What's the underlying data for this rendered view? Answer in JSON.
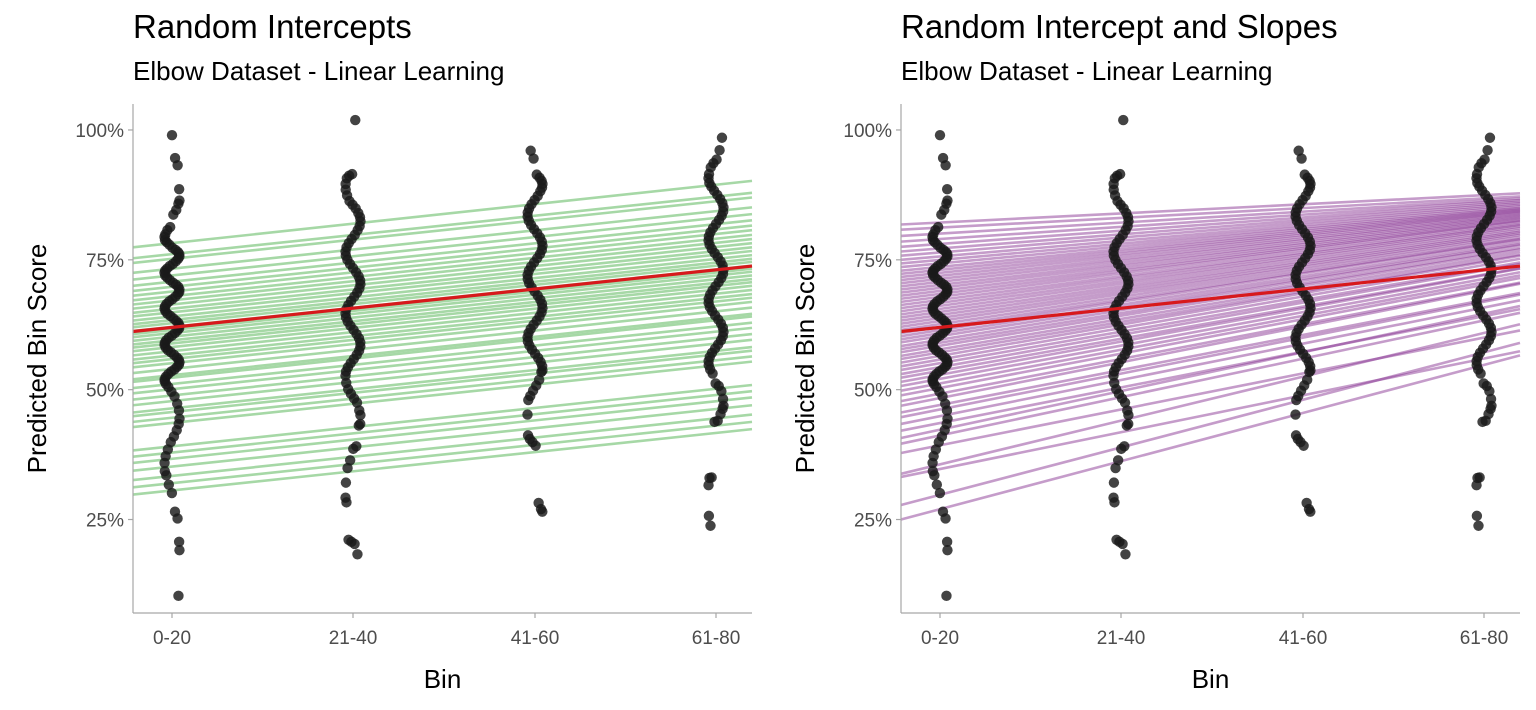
{
  "chart_data": [
    {
      "type": "scatter",
      "title": "Random Intercepts",
      "subtitle": "Elbow Dataset - Linear Learning",
      "xlabel": "Bin",
      "ylabel": "Predicted Bin Score",
      "categories": [
        "0-20",
        "21-40",
        "41-60",
        "61-80"
      ],
      "y_ticks": [
        "25%",
        "50%",
        "75%",
        "100%"
      ],
      "y_tick_values": [
        25,
        50,
        75,
        100
      ],
      "ylim": [
        7,
        105
      ],
      "line_color": "#5cb85c",
      "fit_color": "#d7191c",
      "point_color": "#1a1a1a",
      "fit_line": {
        "start": 61.2,
        "end": 73.8
      },
      "group_lines": {
        "start": [
          29.8,
          31.2,
          32.6,
          34.4,
          35.9,
          37.1,
          38.3,
          42.8,
          43.8,
          44.9,
          45.6,
          47.0,
          48.1,
          49.3,
          50.3,
          51.5,
          52.0,
          53.2,
          54.3,
          55.1,
          55.8,
          56.6,
          57.4,
          58.1,
          58.7,
          59.4,
          60.1,
          60.7,
          61.3,
          62.0,
          62.6,
          63.3,
          64.1,
          64.8,
          65.6,
          66.4,
          67.2,
          68.1,
          69.0,
          70.0,
          71.2,
          72.5,
          74.4,
          75.3,
          77.4
        ],
        "end": [
          42.4,
          43.8,
          45.2,
          47.0,
          48.5,
          49.7,
          50.9,
          55.4,
          56.4,
          57.5,
          58.2,
          59.6,
          60.7,
          61.9,
          62.9,
          64.1,
          64.6,
          65.8,
          66.9,
          67.7,
          68.4,
          69.2,
          70.0,
          70.7,
          71.3,
          72.0,
          72.7,
          73.3,
          73.9,
          74.6,
          75.2,
          75.9,
          76.7,
          77.4,
          78.2,
          79.0,
          79.8,
          80.7,
          81.6,
          82.6,
          83.8,
          85.1,
          87.0,
          87.9,
          90.2
        ]
      },
      "points": [
        [
          99.0,
          94.6,
          93.2,
          88.6,
          86.4,
          85.8,
          84.6,
          83.7,
          81.3,
          80.7,
          79.9,
          79.4,
          78.8,
          78.4,
          77.9,
          77.3,
          76.9,
          76.5,
          76.1,
          75.6,
          75.2,
          74.7,
          74.2,
          73.8,
          73.3,
          72.9,
          72.5,
          72.0,
          71.6,
          71.1,
          70.6,
          70.2,
          69.8,
          69.3,
          68.8,
          68.4,
          67.9,
          67.4,
          67.0,
          66.5,
          66.0,
          65.6,
          65.1,
          64.6,
          64.2,
          63.7,
          63.2,
          62.8,
          62.3,
          61.8,
          61.4,
          60.9,
          60.4,
          60.0,
          59.5,
          59.0,
          58.6,
          58.1,
          57.6,
          57.2,
          56.7,
          56.2,
          55.8,
          55.3,
          54.8,
          54.4,
          53.9,
          53.5,
          53.0,
          52.5,
          52.0,
          51.6,
          51.1,
          50.5,
          49.6,
          48.7,
          47.3,
          46.0,
          44.4,
          43.4,
          42.2,
          41.0,
          39.9,
          38.5,
          37.2,
          35.9,
          34.3,
          33.5,
          31.7,
          30.1,
          26.5,
          25.2,
          20.7,
          19.1,
          10.3
        ],
        [
          101.9,
          91.5,
          91.2,
          90.7,
          89.6,
          88.5,
          87.4,
          86.3,
          85.6,
          84.9,
          84.0,
          83.2,
          82.4,
          81.5,
          80.7,
          79.8,
          79.0,
          78.2,
          77.4,
          76.6,
          75.8,
          75.0,
          74.2,
          73.4,
          72.6,
          71.8,
          71.0,
          70.3,
          69.5,
          68.7,
          67.9,
          67.1,
          66.3,
          65.5,
          64.7,
          63.9,
          63.1,
          62.3,
          61.5,
          60.7,
          59.9,
          59.1,
          58.3,
          57.5,
          56.7,
          55.9,
          55.1,
          54.3,
          53.5,
          52.7,
          51.3,
          50.1,
          49.2,
          48.3,
          47.5,
          46.0,
          45.1,
          43.4,
          43.1,
          39.1,
          38.6,
          36.4,
          34.9,
          32.1,
          29.2,
          28.3,
          21.1,
          20.7,
          20.3,
          18.3
        ],
        [
          96.0,
          94.5,
          91.4,
          90.8,
          90.2,
          89.6,
          88.9,
          88.2,
          87.3,
          86.5,
          85.7,
          84.9,
          84.1,
          83.3,
          82.5,
          81.7,
          80.9,
          80.1,
          79.3,
          78.5,
          77.7,
          76.9,
          76.1,
          75.3,
          74.5,
          73.7,
          72.9,
          72.1,
          71.3,
          70.5,
          69.7,
          68.9,
          68.1,
          67.3,
          66.5,
          65.7,
          64.9,
          64.1,
          63.3,
          62.5,
          61.7,
          60.9,
          60.1,
          59.3,
          58.5,
          57.7,
          56.9,
          56.1,
          55.3,
          54.5,
          53.7,
          53.4,
          51.9,
          50.8,
          49.8,
          48.8,
          48.0,
          45.2,
          41.2,
          40.5,
          39.9,
          39.2,
          28.2,
          27.0,
          26.5
        ],
        [
          98.5,
          96.1,
          94.3,
          93.6,
          92.8,
          91.5,
          90.7,
          89.8,
          89.1,
          88.3,
          87.5,
          86.7,
          85.9,
          85.1,
          84.3,
          83.5,
          82.7,
          81.9,
          81.1,
          80.3,
          79.5,
          78.7,
          77.9,
          77.1,
          76.3,
          75.5,
          74.7,
          73.9,
          73.1,
          72.3,
          71.5,
          70.7,
          69.9,
          69.1,
          68.3,
          67.5,
          66.7,
          65.9,
          65.1,
          64.3,
          63.5,
          62.7,
          61.9,
          61.1,
          60.3,
          59.5,
          58.7,
          57.9,
          57.1,
          56.3,
          55.5,
          54.7,
          53.9,
          53.1,
          51.2,
          50.7,
          49.7,
          48.2,
          46.9,
          46.3,
          45.3,
          44.0,
          43.8,
          33.1,
          33.0,
          31.6,
          25.7,
          23.8
        ]
      ]
    },
    {
      "type": "scatter",
      "title": "Random Intercept and Slopes",
      "subtitle": "Elbow Dataset - Linear Learning",
      "xlabel": "Bin",
      "ylabel": "Predicted Bin Score",
      "categories": [
        "0-20",
        "21-40",
        "41-60",
        "61-80"
      ],
      "y_ticks": [
        "25%",
        "50%",
        "75%",
        "100%"
      ],
      "y_tick_values": [
        25,
        50,
        75,
        100
      ],
      "ylim": [
        7,
        105
      ],
      "line_color": "#8b3a96",
      "fit_color": "#d7191c",
      "point_color": "#1a1a1a",
      "fit_line": {
        "start": 61.2,
        "end": 73.8
      },
      "group_lines": {
        "start": [
          25.0,
          27.8,
          33.2,
          33.8,
          37.8,
          39.6,
          40.7,
          42.1,
          43.4,
          44.7,
          45.6,
          46.9,
          47.8,
          48.9,
          49.8,
          50.7,
          51.5,
          52.3,
          53.0,
          53.8,
          54.5,
          55.2,
          55.9,
          56.5,
          57.2,
          57.8,
          58.4,
          59.1,
          59.7,
          60.3,
          60.9,
          61.5,
          62.1,
          62.7,
          63.3,
          63.9,
          64.5,
          65.1,
          65.7,
          66.3,
          66.9,
          67.5,
          68.1,
          68.7,
          69.3,
          69.9,
          70.5,
          71.1,
          71.7,
          72.3,
          72.9,
          73.6,
          74.3,
          75.0,
          75.8,
          76.6,
          77.5,
          78.5,
          79.6,
          80.8,
          81.8
        ],
        "end": [
          56.6,
          59.0,
          57.4,
          62.6,
          61.4,
          64.8,
          66.1,
          65.5,
          67.2,
          68.3,
          68.6,
          70.4,
          70.6,
          71.5,
          72.0,
          72.6,
          73.3,
          73.4,
          74.2,
          74.5,
          75.2,
          75.8,
          76.0,
          76.5,
          77.0,
          77.3,
          77.8,
          78.0,
          78.4,
          78.9,
          79.0,
          79.4,
          79.8,
          80.1,
          80.4,
          80.7,
          81.1,
          81.4,
          81.7,
          81.9,
          82.3,
          82.5,
          82.7,
          83.0,
          83.2,
          83.5,
          83.7,
          84.0,
          84.2,
          84.4,
          84.6,
          84.8,
          85.0,
          85.3,
          85.6,
          85.9,
          86.2,
          86.5,
          86.8,
          87.2,
          87.8
        ]
      },
      "points": [
        [
          99.0,
          94.6,
          93.2,
          88.6,
          86.4,
          85.8,
          84.6,
          83.7,
          81.3,
          80.7,
          79.9,
          79.4,
          78.8,
          78.4,
          77.9,
          77.3,
          76.9,
          76.5,
          76.1,
          75.6,
          75.2,
          74.7,
          74.2,
          73.8,
          73.3,
          72.9,
          72.5,
          72.0,
          71.6,
          71.1,
          70.6,
          70.2,
          69.8,
          69.3,
          68.8,
          68.4,
          67.9,
          67.4,
          67.0,
          66.5,
          66.0,
          65.6,
          65.1,
          64.6,
          64.2,
          63.7,
          63.2,
          62.8,
          62.3,
          61.8,
          61.4,
          60.9,
          60.4,
          60.0,
          59.5,
          59.0,
          58.6,
          58.1,
          57.6,
          57.2,
          56.7,
          56.2,
          55.8,
          55.3,
          54.8,
          54.4,
          53.9,
          53.5,
          53.0,
          52.5,
          52.0,
          51.6,
          51.1,
          50.5,
          49.6,
          48.7,
          47.3,
          46.0,
          44.4,
          43.4,
          42.2,
          41.0,
          39.9,
          38.5,
          37.2,
          35.9,
          34.3,
          33.5,
          31.7,
          30.1,
          26.5,
          25.2,
          20.7,
          19.1,
          10.3
        ],
        [
          101.9,
          91.5,
          91.2,
          90.7,
          89.6,
          88.5,
          87.4,
          86.3,
          85.6,
          84.9,
          84.0,
          83.2,
          82.4,
          81.5,
          80.7,
          79.8,
          79.0,
          78.2,
          77.4,
          76.6,
          75.8,
          75.0,
          74.2,
          73.4,
          72.6,
          71.8,
          71.0,
          70.3,
          69.5,
          68.7,
          67.9,
          67.1,
          66.3,
          65.5,
          64.7,
          63.9,
          63.1,
          62.3,
          61.5,
          60.7,
          59.9,
          59.1,
          58.3,
          57.5,
          56.7,
          55.9,
          55.1,
          54.3,
          53.5,
          52.7,
          51.3,
          50.1,
          49.2,
          48.3,
          47.5,
          46.0,
          45.1,
          43.4,
          43.1,
          39.1,
          38.6,
          36.4,
          34.9,
          32.1,
          29.2,
          28.3,
          21.1,
          20.7,
          20.3,
          18.3
        ],
        [
          96.0,
          94.5,
          91.4,
          90.8,
          90.2,
          89.6,
          88.9,
          88.2,
          87.3,
          86.5,
          85.7,
          84.9,
          84.1,
          83.3,
          82.5,
          81.7,
          80.9,
          80.1,
          79.3,
          78.5,
          77.7,
          76.9,
          76.1,
          75.3,
          74.5,
          73.7,
          72.9,
          72.1,
          71.3,
          70.5,
          69.7,
          68.9,
          68.1,
          67.3,
          66.5,
          65.7,
          64.9,
          64.1,
          63.3,
          62.5,
          61.7,
          60.9,
          60.1,
          59.3,
          58.5,
          57.7,
          56.9,
          56.1,
          55.3,
          54.5,
          53.7,
          53.4,
          51.9,
          50.8,
          49.8,
          48.8,
          48.0,
          45.2,
          41.2,
          40.5,
          39.9,
          39.2,
          28.2,
          27.0,
          26.5
        ],
        [
          98.5,
          96.1,
          94.3,
          93.6,
          92.8,
          91.5,
          90.7,
          89.8,
          89.1,
          88.3,
          87.5,
          86.7,
          85.9,
          85.1,
          84.3,
          83.5,
          82.7,
          81.9,
          81.1,
          80.3,
          79.5,
          78.7,
          77.9,
          77.1,
          76.3,
          75.5,
          74.7,
          73.9,
          73.1,
          72.3,
          71.5,
          70.7,
          69.9,
          69.1,
          68.3,
          67.5,
          66.7,
          65.9,
          65.1,
          64.3,
          63.5,
          62.7,
          61.9,
          61.1,
          60.3,
          59.5,
          58.7,
          57.9,
          57.1,
          56.3,
          55.5,
          54.7,
          53.9,
          53.1,
          51.2,
          50.7,
          49.7,
          48.2,
          46.9,
          46.3,
          45.3,
          44.0,
          43.8,
          33.1,
          33.0,
          31.6,
          25.7,
          23.8
        ]
      ]
    }
  ]
}
